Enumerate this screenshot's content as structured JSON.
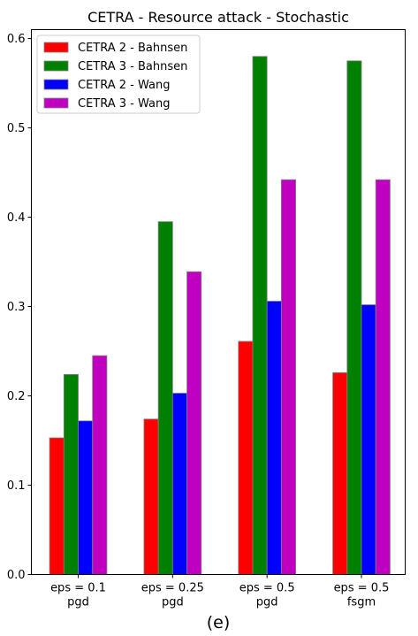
{
  "chart_data": {
    "type": "bar",
    "title": "CETRA - Resource attack - Stochastic",
    "xlabel": "(e)",
    "ylabel": "",
    "ylim": [
      0,
      0.61
    ],
    "yticks": [
      0.0,
      0.1,
      0.2,
      0.3,
      0.4,
      0.5,
      0.6
    ],
    "ytick_labels": [
      "0.0",
      "0.1",
      "0.2",
      "0.3",
      "0.4",
      "0.5",
      "0.6"
    ],
    "categories": [
      [
        "eps = 0.1",
        "pgd"
      ],
      [
        "eps = 0.25",
        "pgd"
      ],
      [
        "eps = 0.5",
        "pgd"
      ],
      [
        "eps = 0.5",
        "fsgm"
      ]
    ],
    "series": [
      {
        "name": "CETRA 2 - Bahnsen",
        "color": "#ff0000",
        "values": [
          0.153,
          0.174,
          0.261,
          0.226
        ]
      },
      {
        "name": "CETRA 3 - Bahnsen",
        "color": "#008000",
        "values": [
          0.224,
          0.395,
          0.58,
          0.575
        ]
      },
      {
        "name": "CETRA 2 - Wang",
        "color": "#0000ff",
        "values": [
          0.172,
          0.203,
          0.306,
          0.302
        ]
      },
      {
        "name": "CETRA 3 - Wang",
        "color": "#c000c0",
        "values": [
          0.245,
          0.339,
          0.442,
          0.442
        ]
      }
    ],
    "legend_position": "top-left",
    "grid": false
  }
}
